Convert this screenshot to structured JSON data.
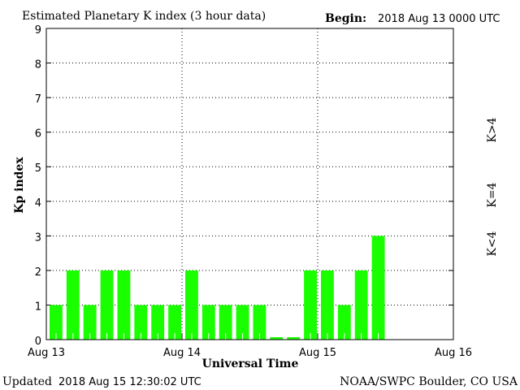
{
  "chart_data": {
    "type": "bar",
    "title": "Estimated Planetary K index (3 hour data)",
    "begin_label": "Begin:",
    "begin_value": "2018 Aug 13 0000 UTC",
    "xlabel": "Universal Time",
    "ylabel": "Kp index",
    "ylim": [
      0,
      9
    ],
    "yticks": [
      "0",
      "1",
      "2",
      "3",
      "4",
      "5",
      "6",
      "7",
      "8",
      "9"
    ],
    "xticks": [
      "Aug 13",
      "Aug 14",
      "Aug 15",
      "Aug 16"
    ],
    "bin_hours": 3,
    "bins_total": 24,
    "values": [
      1,
      2,
      1,
      2,
      2,
      1,
      1,
      1,
      2,
      1,
      1,
      1,
      1,
      0,
      0,
      2,
      2,
      1,
      2,
      3
    ],
    "bar_color": "#19ff00",
    "grid": true,
    "legend": [
      {
        "label": "K<4",
        "color": "#19ff00"
      },
      {
        "label": "K=4",
        "color": "#ffd700"
      },
      {
        "label": "K>4",
        "color": "#ff2a00"
      }
    ],
    "legend_placement": "right"
  },
  "footer": {
    "updated_label": "Updated",
    "updated_value": "2018 Aug 15 12:30:02 UTC",
    "source": "NOAA/SWPC Boulder, CO USA"
  }
}
